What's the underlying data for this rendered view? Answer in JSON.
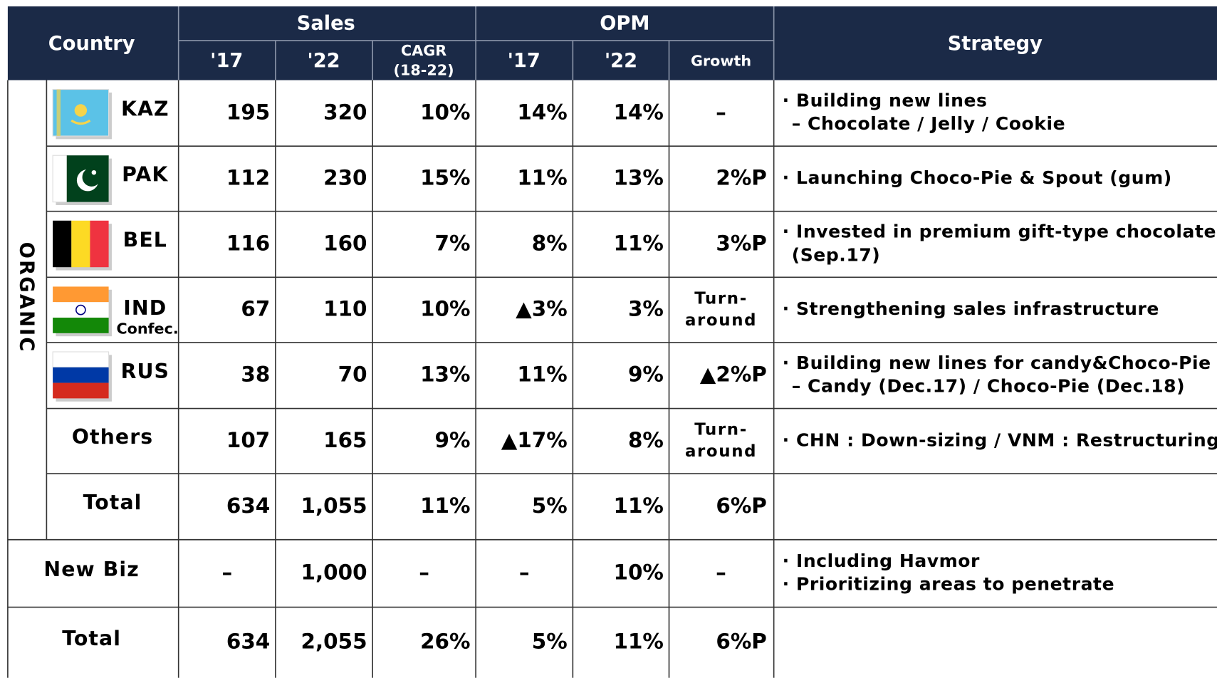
{
  "header": {
    "country": "Country",
    "sales": "Sales",
    "opm": "OPM",
    "strategy": "Strategy",
    "sales_17": "'17",
    "sales_22": "'22",
    "cagr": "CAGR",
    "cagr_period": "(18-22)",
    "opm_17": "'17",
    "opm_22": "'22",
    "growth": "Growth"
  },
  "organic_label": "ORGANIC",
  "rows": [
    {
      "country": "KAZ",
      "cells": [
        "195",
        "320",
        "10%",
        "14%",
        "14%"
      ],
      "growth": [
        "–"
      ],
      "strategy": [
        "· Building new lines",
        "– Chocolate / Jelly / Cookie"
      ]
    },
    {
      "country": "PAK",
      "cells": [
        "112",
        "230",
        "15%",
        "11%",
        "13%"
      ],
      "growth": [
        "2%P"
      ],
      "strategy": [
        "· Launching Choco-Pie & Spout (gum)"
      ]
    },
    {
      "country": "BEL",
      "cells": [
        "116",
        "160",
        "7%",
        "8%",
        "11%"
      ],
      "growth": [
        "3%P"
      ],
      "strategy": [
        "· Invested in premium gift-type chocolate",
        "(Sep.17)"
      ]
    },
    {
      "country": "IND",
      "sub": "Confec.",
      "cells": [
        "67",
        "110",
        "10%",
        "▲3%",
        "3%"
      ],
      "growth": [
        "Turn-",
        "around"
      ],
      "strategy": [
        "· Strengthening sales infrastructure"
      ]
    },
    {
      "country": "RUS",
      "cells": [
        "38",
        "70",
        "13%",
        "11%",
        "9%"
      ],
      "growth": [
        "▲2%P"
      ],
      "strategy": [
        "· Building new lines for candy&Choco-Pie",
        "– Candy (Dec.17) / Choco-Pie (Dec.18)"
      ]
    },
    {
      "country": "Others",
      "cells": [
        "107",
        "165",
        "9%",
        "▲17%",
        "8%"
      ],
      "growth": [
        "Turn-",
        "around"
      ],
      "strategy": [
        "· CHN : Down-sizing / VNM : Restructuring"
      ]
    },
    {
      "country": "Total",
      "cells": [
        "634",
        "1,055",
        "11%",
        "5%",
        "11%"
      ],
      "growth": [
        "6%P"
      ],
      "strategy": []
    },
    {
      "country": "New Biz",
      "cells": [
        "–",
        "1,000",
        "–",
        "–",
        "10%"
      ],
      "growth": [
        "–"
      ],
      "strategy": [
        "· Including Havmor",
        "· Prioritizing areas to penetrate"
      ]
    },
    {
      "country": "Total",
      "cells": [
        "634",
        "2,055",
        "26%",
        "5%",
        "11%"
      ],
      "growth": [
        "6%P"
      ],
      "strategy": []
    }
  ]
}
